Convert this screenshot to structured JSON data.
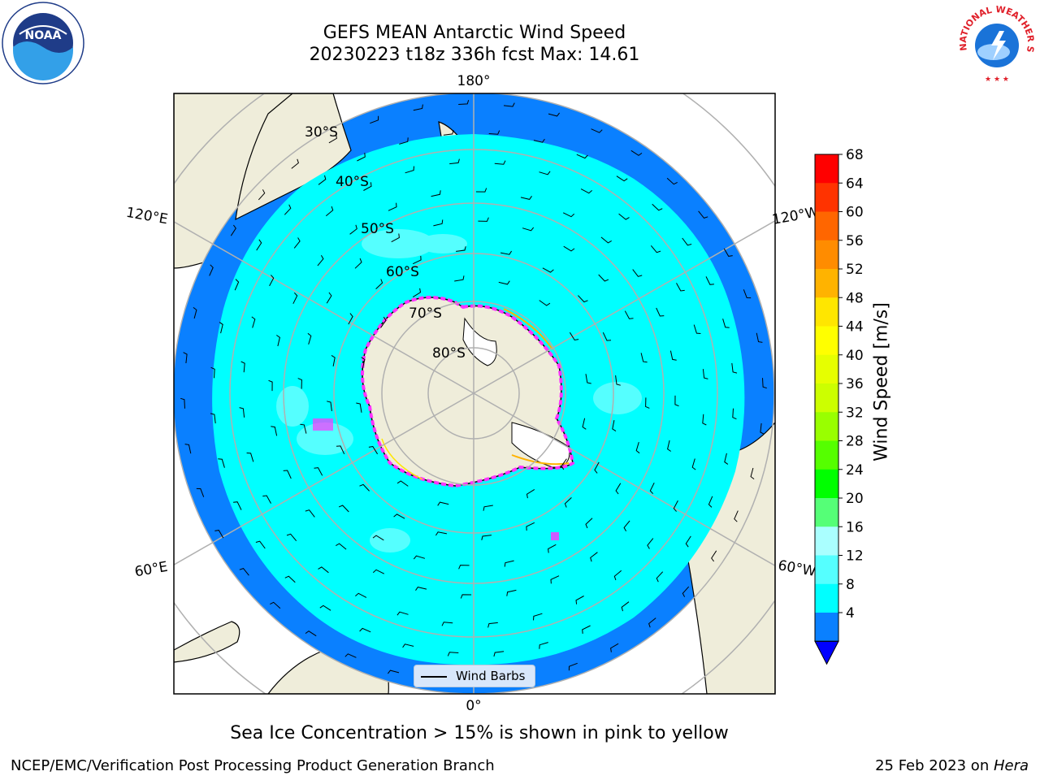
{
  "title": {
    "line1": "GEFS MEAN Antarctic Wind Speed",
    "line2": "20230223 t18z 336h fcst   Max: 14.61"
  },
  "logos": {
    "left": "NOAA",
    "right_text": "NATIONAL WEATHER SERVICE"
  },
  "map": {
    "projection": "south polar stereographic",
    "longitude_labels": [
      "180°",
      "120°E",
      "120°W",
      "60°E",
      "60°W",
      "0°"
    ],
    "latitude_labels": [
      "30°S",
      "40°S",
      "50°S",
      "60°S",
      "70°S",
      "80°S"
    ],
    "colors": {
      "ocean_4_8": "#0a80ff",
      "ocean_8_12": "#00ffff",
      "ocean_12_16": "#55ffff",
      "land": "#efedda",
      "sea_ice": "#ff33ff",
      "gridline": "#b0b0b0"
    }
  },
  "legend": {
    "label": "Wind Barbs"
  },
  "colorbar": {
    "label": "Wind Speed [m/s]",
    "ticks": [
      "68",
      "64",
      "60",
      "56",
      "52",
      "48",
      "44",
      "40",
      "36",
      "32",
      "28",
      "24",
      "20",
      "16",
      "12",
      "8",
      "4"
    ],
    "colors": [
      "#ff0000",
      "#ff3300",
      "#ff6600",
      "#ff8c00",
      "#ffb300",
      "#ffe600",
      "#ffff00",
      "#e6ff00",
      "#ccff00",
      "#99ff00",
      "#55ff00",
      "#00ff00",
      "#55ff77",
      "#aaffff",
      "#55ffff",
      "#00ffff",
      "#0a80ff"
    ],
    "under_color": "#0000ff"
  },
  "caption": "Sea Ice Concentration > 15% is shown in pink to yellow",
  "footer": {
    "left": "NCEP/EMC/Verification Post Processing Product Generation Branch",
    "right_date": "25 Feb 2023 on ",
    "right_machine": "Hera"
  }
}
